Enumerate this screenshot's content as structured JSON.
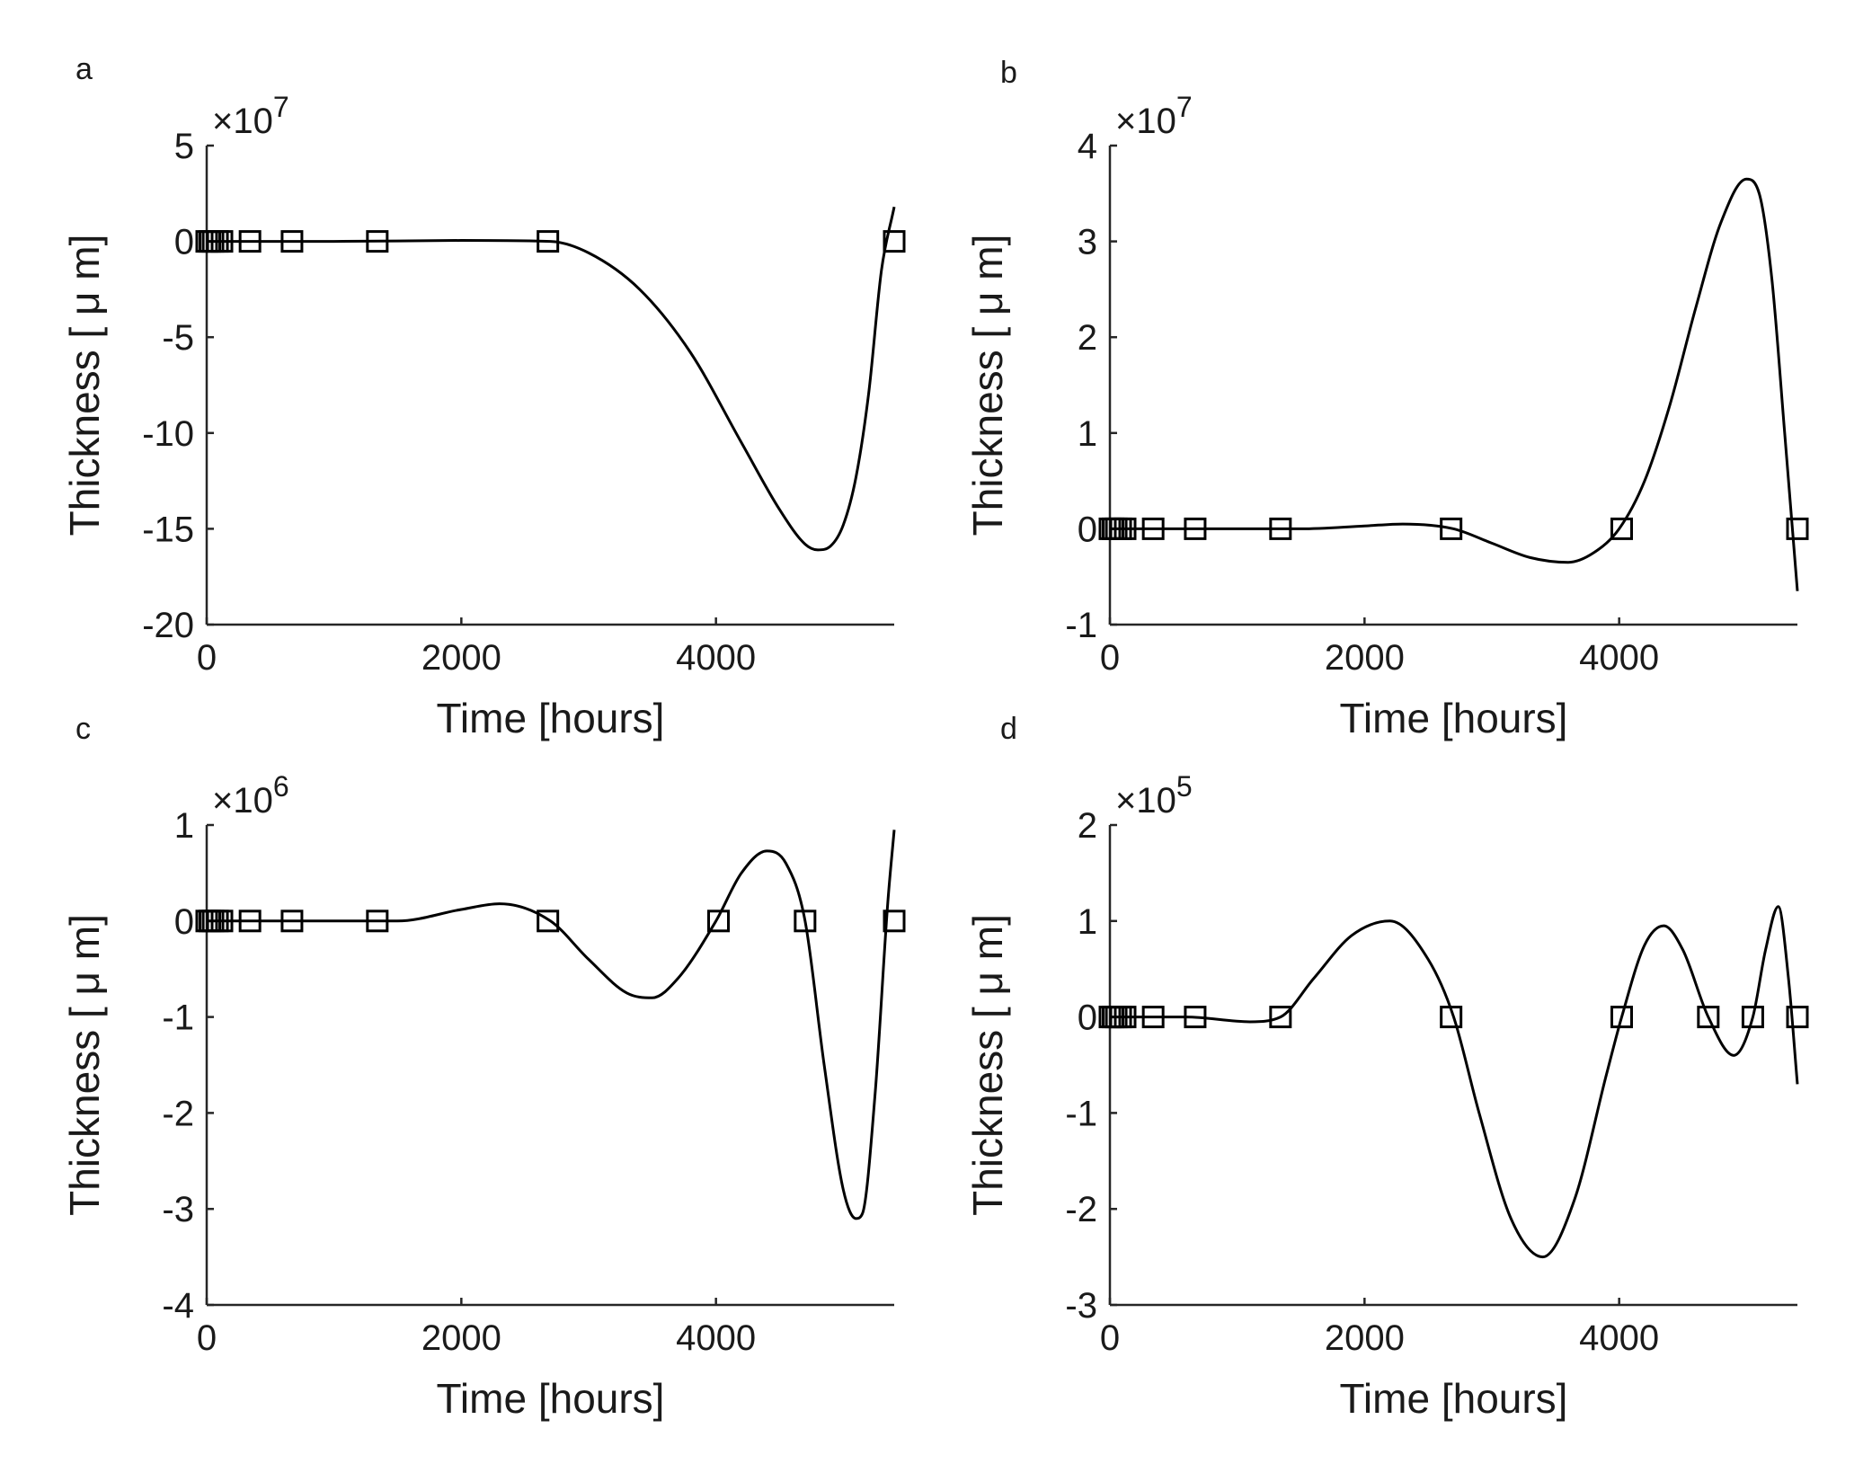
{
  "chart_data": [
    {
      "type": "line",
      "panel_label": "a",
      "xlabel": "Time [hours]",
      "ylabel": "Thickness [ μ m]",
      "exponent_label": "×10",
      "exponent_power": "7",
      "xlim": [
        0,
        5400
      ],
      "ylim": [
        -20,
        5
      ],
      "xticks": [
        0,
        2000,
        4000
      ],
      "yticks": [
        5,
        0,
        -5,
        -10,
        -15,
        -20
      ],
      "ytick_labels": [
        "5",
        "0",
        "-5",
        "-10",
        "-15",
        "-20"
      ],
      "grid": false,
      "series": [
        {
          "name": "fitted curve",
          "x": [
            0,
            1000,
            2000,
            2700,
            3000,
            3400,
            3800,
            4200,
            4500,
            4700,
            4800,
            4900,
            5000,
            5100,
            5200,
            5300,
            5400
          ],
          "y": [
            0,
            0,
            0.05,
            0,
            -0.6,
            -2.5,
            -5.8,
            -10.5,
            -14.0,
            -15.8,
            -16.1,
            -15.9,
            -14.8,
            -12.3,
            -7.9,
            -1.5,
            1.8
          ]
        },
        {
          "name": "data points",
          "x": [
            0,
            25,
            50,
            85,
            120,
            340,
            670,
            1340,
            2680,
            5400
          ],
          "y": [
            0,
            0,
            0,
            0,
            0,
            0,
            0,
            0,
            0,
            0
          ]
        }
      ]
    },
    {
      "type": "line",
      "panel_label": "b",
      "xlabel": "Time [hours]",
      "ylabel": "Thickness [ μ m]",
      "exponent_label": "×10",
      "exponent_power": "7",
      "xlim": [
        0,
        5400
      ],
      "ylim": [
        -1,
        4
      ],
      "xticks": [
        0,
        2000,
        4000
      ],
      "yticks": [
        4,
        3,
        2,
        1,
        0,
        -1
      ],
      "ytick_labels": [
        "4",
        "3",
        "2",
        "1",
        "0",
        "-1"
      ],
      "grid": false,
      "series": [
        {
          "name": "fitted curve",
          "x": [
            0,
            1000,
            1500,
            2000,
            2300,
            2700,
            3000,
            3300,
            3600,
            3800,
            4000,
            4200,
            4400,
            4600,
            4800,
            5000,
            5100,
            5200,
            5300,
            5400
          ],
          "y": [
            0,
            0,
            0,
            0.03,
            0.05,
            0,
            -0.15,
            -0.3,
            -0.35,
            -0.25,
            0,
            0.5,
            1.3,
            2.3,
            3.2,
            3.65,
            3.5,
            2.6,
            1.0,
            -0.65
          ]
        },
        {
          "name": "data points",
          "x": [
            0,
            25,
            50,
            85,
            120,
            340,
            670,
            1340,
            2680,
            4020,
            5400
          ],
          "y": [
            0,
            0,
            0,
            0,
            0,
            0,
            0,
            0,
            0,
            0,
            0
          ]
        }
      ]
    },
    {
      "type": "line",
      "panel_label": "c",
      "xlabel": "Time [hours]",
      "ylabel": "Thickness [ μ m]",
      "exponent_label": "×10",
      "exponent_power": "6",
      "xlim": [
        0,
        5400
      ],
      "ylim": [
        -4,
        1
      ],
      "xticks": [
        0,
        2000,
        4000
      ],
      "yticks": [
        1,
        0,
        -1,
        -2,
        -3,
        -4
      ],
      "ytick_labels": [
        "1",
        "0",
        "-1",
        "-2",
        "-3",
        "-4"
      ],
      "grid": false,
      "series": [
        {
          "name": "fitted curve",
          "x": [
            0,
            1000,
            1500,
            2000,
            2300,
            2700,
            3000,
            3300,
            3500,
            3700,
            4000,
            4200,
            4400,
            4550,
            4700,
            4850,
            5000,
            5100,
            5150,
            5250,
            5350,
            5400
          ],
          "y": [
            0,
            0,
            0,
            0.12,
            0.18,
            0,
            -0.4,
            -0.75,
            -0.8,
            -0.6,
            0,
            0.5,
            0.73,
            0.6,
            0,
            -1.5,
            -2.8,
            -3.1,
            -3.05,
            -1.8,
            0.2,
            0.95
          ]
        },
        {
          "name": "data points",
          "x": [
            0,
            25,
            50,
            85,
            120,
            340,
            670,
            1340,
            2680,
            4020,
            4700,
            5400
          ],
          "y": [
            0,
            0,
            0,
            0,
            0,
            0,
            0,
            0,
            0,
            0,
            0,
            0
          ]
        }
      ]
    },
    {
      "type": "line",
      "panel_label": "d",
      "xlabel": "Time [hours]",
      "ylabel": "Thickness [ μ m]",
      "exponent_label": "×10",
      "exponent_power": "5",
      "xlim": [
        0,
        5400
      ],
      "ylim": [
        -3,
        2
      ],
      "xticks": [
        0,
        2000,
        4000
      ],
      "yticks": [
        2,
        1,
        0,
        -1,
        -2,
        -3
      ],
      "ytick_labels": [
        "2",
        "1",
        "0",
        "-1",
        "-2",
        "-3"
      ],
      "grid": false,
      "series": [
        {
          "name": "fitted curve",
          "x": [
            0,
            600,
            1100,
            1340,
            1600,
            1900,
            2200,
            2500,
            2700,
            2900,
            3150,
            3400,
            3650,
            3900,
            4020,
            4200,
            4350,
            4500,
            4700,
            4900,
            5050,
            5150,
            5250,
            5330,
            5400
          ],
          "y": [
            0,
            0,
            -0.05,
            0,
            0.4,
            0.85,
            1.0,
            0.6,
            0,
            -1.0,
            -2.1,
            -2.5,
            -1.9,
            -0.6,
            0,
            0.75,
            0.95,
            0.7,
            0,
            -0.4,
            0,
            0.7,
            1.15,
            0.4,
            -0.7
          ]
        },
        {
          "name": "data points",
          "x": [
            0,
            25,
            50,
            85,
            120,
            340,
            670,
            1340,
            2680,
            4020,
            4700,
            5050,
            5400
          ],
          "y": [
            0,
            0,
            0,
            0,
            0,
            0,
            0,
            0,
            0,
            0,
            0,
            0,
            0
          ]
        }
      ]
    }
  ]
}
